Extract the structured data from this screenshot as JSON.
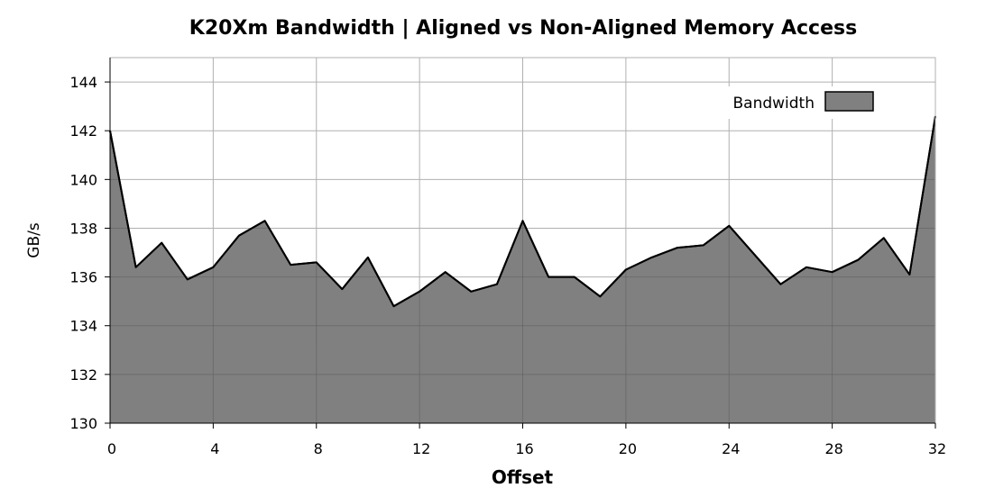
{
  "chart_data": {
    "type": "area",
    "title": "K20Xm Bandwidth | Aligned vs Non-Aligned Memory Access",
    "xlabel": "Offset",
    "ylabel": "GB/s",
    "xlim": [
      0,
      32
    ],
    "ylim": [
      130,
      145
    ],
    "xticks": [
      0,
      4,
      8,
      12,
      16,
      20,
      24,
      28,
      32
    ],
    "yticks": [
      130,
      132,
      134,
      136,
      138,
      140,
      142,
      144
    ],
    "grid": true,
    "legend_position": "top-right",
    "colors": {
      "fill": "#808080",
      "line": "#000000",
      "grid": "#b0b0b0"
    },
    "series": [
      {
        "name": "Bandwidth",
        "x": [
          0,
          1,
          2,
          3,
          4,
          5,
          6,
          7,
          8,
          9,
          10,
          11,
          12,
          13,
          14,
          15,
          16,
          17,
          18,
          19,
          20,
          21,
          22,
          23,
          24,
          25,
          26,
          27,
          28,
          29,
          30,
          31,
          32
        ],
        "values": [
          142.0,
          136.4,
          137.4,
          135.9,
          136.4,
          137.7,
          138.3,
          136.5,
          136.6,
          135.5,
          136.8,
          134.8,
          135.4,
          136.2,
          135.4,
          135.7,
          138.3,
          136.0,
          136.0,
          135.2,
          136.3,
          136.8,
          137.2,
          137.3,
          138.1,
          136.9,
          135.7,
          136.4,
          136.2,
          136.7,
          137.6,
          136.1,
          142.6
        ]
      }
    ]
  }
}
